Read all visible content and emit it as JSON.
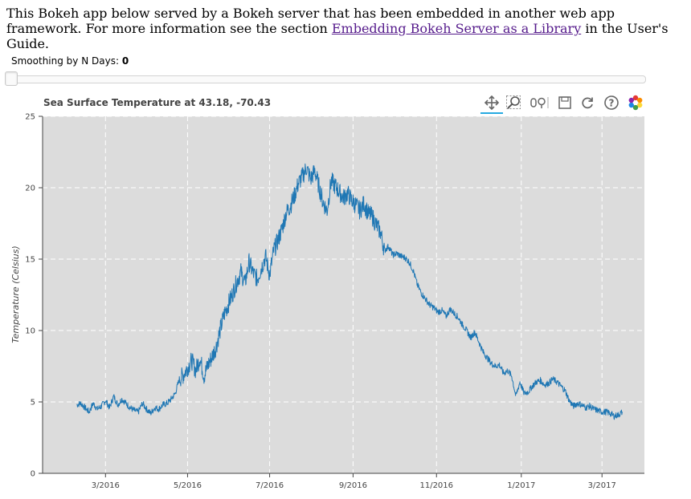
{
  "intro": {
    "text_before": "This Bokeh app below served by a Bokeh server that has been embedded in another web app framework. For more information see the section ",
    "link_text": "Embedding Bokeh Server as a Library",
    "text_after": " in the User's Guide."
  },
  "slider": {
    "label": "Smoothing by N Days: ",
    "value": "0",
    "value_fraction": 0
  },
  "toolbar": {
    "tools": [
      {
        "name": "pan-tool-icon",
        "active": true
      },
      {
        "name": "box-zoom-tool-icon",
        "active": false
      },
      {
        "name": "wheel-zoom-tool-icon",
        "active": false
      },
      {
        "name": "save-tool-icon",
        "active": false
      },
      {
        "name": "reset-tool-icon",
        "active": false
      },
      {
        "name": "help-tool-icon",
        "active": false
      },
      {
        "name": "bokeh-logo-icon",
        "active": false
      }
    ]
  },
  "colors": {
    "line": "#1f77b4",
    "plot_background": "#dcdcdc",
    "grid": "#ffffff",
    "accent": "#26aae1"
  },
  "chart_data": {
    "type": "line",
    "title": "Sea Surface Temperature at 43.18, -70.43",
    "xlabel": "",
    "ylabel": "Temperature (Celsius)",
    "x_tick_labels": [
      "3/2016",
      "5/2016",
      "7/2016",
      "9/2016",
      "11/2016",
      "1/2017",
      "3/2017"
    ],
    "x_tick_days": [
      46,
      106,
      166,
      227,
      288,
      350,
      409
    ],
    "xlim_days": [
      0,
      440
    ],
    "y_ticks": [
      0,
      5,
      10,
      15,
      20,
      25
    ],
    "ylim": [
      0,
      25
    ],
    "grid": true,
    "series": [
      {
        "name": "temperature",
        "x_days": [
          25,
          28,
          31,
          34,
          37,
          40,
          43,
          46,
          49,
          52,
          55,
          58,
          61,
          64,
          67,
          70,
          73,
          76,
          79,
          82,
          85,
          88,
          91,
          94,
          97,
          100,
          103,
          106,
          109,
          112,
          115,
          118,
          121,
          124,
          127,
          130,
          133,
          136,
          139,
          142,
          145,
          148,
          151,
          154,
          157,
          160,
          163,
          166,
          169,
          172,
          175,
          178,
          181,
          184,
          187,
          190,
          193,
          196,
          199,
          202,
          205,
          208,
          211,
          214,
          217,
          220,
          223,
          226,
          229,
          232,
          235,
          238,
          241,
          244,
          247,
          250,
          253,
          256,
          259,
          262,
          265,
          268,
          271,
          274,
          277,
          280,
          283,
          286,
          289,
          292,
          295,
          298,
          301,
          304,
          307,
          310,
          313,
          316,
          319,
          322,
          325,
          328,
          331,
          334,
          337,
          340,
          343,
          346,
          349,
          352,
          355,
          358,
          361,
          364,
          367,
          370,
          373,
          376,
          379,
          382,
          385,
          388,
          391,
          394,
          397,
          400,
          403,
          406,
          409,
          412,
          415,
          418,
          421,
          424
        ],
        "values": [
          4.8,
          4.9,
          4.6,
          4.3,
          4.9,
          4.5,
          4.7,
          5.1,
          4.6,
          5.4,
          4.8,
          5.2,
          4.9,
          4.6,
          4.4,
          4.3,
          4.9,
          4.5,
          4.2,
          4.6,
          4.5,
          4.8,
          4.9,
          5.2,
          5.6,
          6.6,
          6.9,
          7.4,
          7.9,
          7.2,
          8.1,
          6.8,
          7.6,
          8.2,
          8.9,
          10.1,
          11.2,
          11.9,
          12.6,
          13.4,
          14.1,
          13.3,
          14.8,
          14.0,
          13.6,
          14.4,
          15.2,
          13.9,
          15.6,
          16.3,
          17.1,
          18.2,
          18.7,
          19.4,
          20.3,
          20.8,
          21.4,
          20.6,
          21.2,
          20.1,
          19.0,
          18.4,
          20.5,
          20.1,
          19.7,
          19.3,
          19.6,
          19.1,
          18.8,
          18.4,
          18.9,
          18.2,
          18.0,
          17.4,
          16.9,
          15.6,
          15.9,
          15.3,
          15.4,
          15.2,
          15.1,
          14.8,
          14.2,
          13.2,
          12.6,
          12.2,
          11.8,
          11.6,
          11.3,
          11.4,
          11.0,
          11.5,
          11.2,
          10.9,
          10.4,
          10.0,
          9.5,
          9.9,
          9.2,
          8.5,
          8.1,
          7.7,
          7.5,
          7.6,
          7.0,
          7.2,
          6.8,
          5.4,
          6.4,
          5.6,
          5.7,
          6.1,
          6.4,
          6.5,
          6.2,
          6.3,
          6.6,
          6.4,
          6.1,
          5.8,
          5.1,
          4.7,
          4.9,
          4.8,
          4.6,
          4.7,
          4.5,
          4.4,
          4.3,
          4.3,
          4.2,
          4.0,
          4.1,
          4.3
        ]
      }
    ]
  }
}
